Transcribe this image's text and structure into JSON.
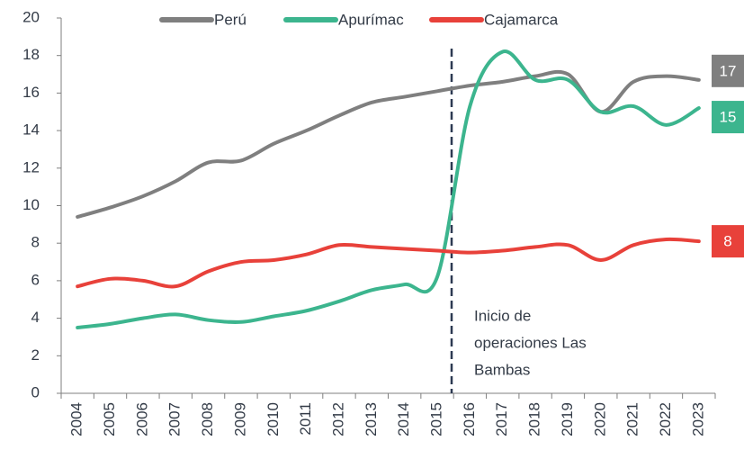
{
  "chart_data": {
    "type": "line",
    "categories": [
      "2004",
      "2005",
      "2006",
      "2007",
      "2008",
      "2009",
      "2010",
      "2011",
      "2012",
      "2013",
      "2014",
      "2015",
      "2016",
      "2017",
      "2018",
      "2019",
      "2020",
      "2021",
      "2022",
      "2023"
    ],
    "series": [
      {
        "name": "Perú",
        "color": "#7f7f7f",
        "values": [
          9.4,
          9.9,
          10.5,
          11.3,
          12.3,
          12.4,
          13.3,
          14.0,
          14.8,
          15.5,
          15.8,
          16.1,
          16.4,
          16.6,
          16.9,
          17.0,
          15.0,
          16.6,
          16.9,
          16.7
        ],
        "value_labels": [
          null,
          null,
          null,
          null,
          null,
          null,
          null,
          null,
          null,
          null,
          null,
          null,
          null,
          null,
          null,
          null,
          null,
          null,
          null,
          "17"
        ]
      },
      {
        "name": "Apurímac",
        "color": "#3cb58e",
        "values": [
          3.5,
          3.7,
          4.0,
          4.2,
          3.9,
          3.8,
          4.1,
          4.4,
          4.9,
          5.5,
          5.8,
          6.2,
          15.3,
          18.2,
          16.7,
          16.7,
          15.0,
          15.3,
          14.3,
          15.2
        ],
        "value_labels": [
          null,
          null,
          null,
          null,
          null,
          null,
          null,
          null,
          null,
          null,
          null,
          null,
          null,
          null,
          null,
          null,
          null,
          null,
          null,
          "15"
        ]
      },
      {
        "name": "Cajamarca",
        "color": "#e8413a",
        "values": [
          5.7,
          6.1,
          6.0,
          5.7,
          6.5,
          7.0,
          7.1,
          7.4,
          7.9,
          7.8,
          7.7,
          7.6,
          7.5,
          7.6,
          7.8,
          7.9,
          7.1,
          7.9,
          8.2,
          8.1
        ],
        "value_labels": [
          null,
          null,
          null,
          null,
          null,
          null,
          null,
          null,
          null,
          null,
          null,
          null,
          null,
          null,
          null,
          null,
          null,
          null,
          null,
          "8"
        ]
      }
    ],
    "ylim": [
      0,
      20
    ],
    "yticks": [
      0,
      2,
      4,
      6,
      8,
      10,
      12,
      14,
      16,
      18,
      20
    ],
    "annotation": [
      "Inicio de",
      "operaciones Las",
      "Bambas"
    ],
    "legend": "top"
  }
}
